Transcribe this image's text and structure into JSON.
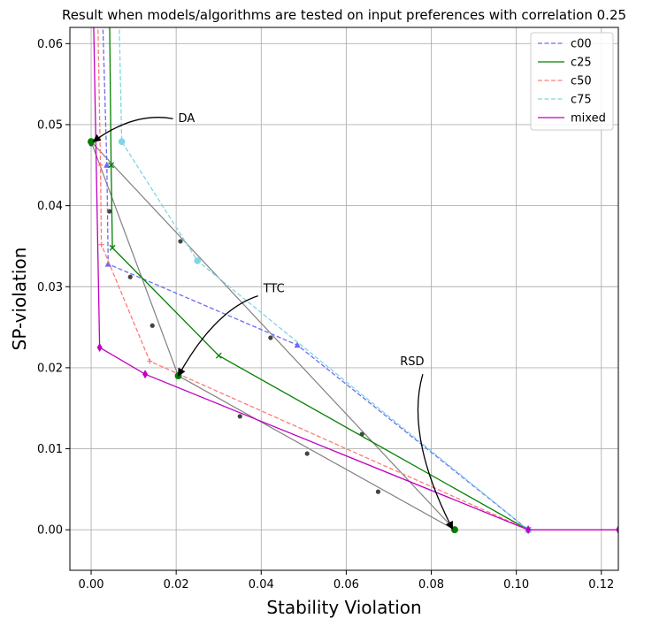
{
  "chart_data": {
    "type": "line",
    "title": "Result when models/algorithms are tested on input preferences with correlation 0.25",
    "xlabel": "Stability Violation",
    "ylabel": "SP-violation",
    "xlim": [
      -0.005,
      0.124
    ],
    "ylim": [
      -0.005,
      0.062
    ],
    "xticks": [
      "0.00",
      "0.02",
      "0.04",
      "0.06",
      "0.08",
      "0.10",
      "0.12"
    ],
    "xtick_values": [
      0,
      0.02,
      0.04,
      0.06,
      0.08,
      0.1,
      0.12
    ],
    "yticks": [
      "0.00",
      "0.01",
      "0.02",
      "0.03",
      "0.04",
      "0.05",
      "0.06"
    ],
    "ytick_values": [
      0,
      0.01,
      0.02,
      0.03,
      0.04,
      0.05,
      0.06
    ],
    "grid": true,
    "legend_position": "top-right",
    "series": [
      {
        "name": "c00",
        "color": "#6b6bf2",
        "dash": "dashed",
        "marker": "triangle",
        "x": [
          0.0026,
          0.0037,
          0.004,
          0.0485,
          0.1028
        ],
        "y": [
          0.065,
          0.045,
          0.0328,
          0.0228,
          0.0
        ]
      },
      {
        "name": "c25",
        "color": "#008000",
        "dash": "solid",
        "marker": "x",
        "x": [
          0.0043,
          0.0047,
          0.005,
          0.03,
          0.1028
        ],
        "y": [
          0.065,
          0.045,
          0.0348,
          0.0215,
          0.0
        ]
      },
      {
        "name": "c50",
        "color": "#ff7a7a",
        "dash": "dashed",
        "marker": "plus",
        "x": [
          0.0015,
          0.0022,
          0.0024,
          0.0138,
          0.1028
        ],
        "y": [
          0.065,
          0.045,
          0.0352,
          0.0208,
          0.0
        ]
      },
      {
        "name": "c75",
        "color": "#7fd6e6",
        "dash": "dashed",
        "marker": "circle",
        "x": [
          0.0065,
          0.0072,
          0.025,
          0.1028
        ],
        "y": [
          0.065,
          0.0479,
          0.0332,
          0.0
        ]
      },
      {
        "name": "mixed",
        "color": "#c000c0",
        "dash": "solid",
        "marker": "diamond",
        "x": [
          0.0005,
          0.002,
          0.0127,
          0.1028,
          0.124
        ],
        "y": [
          0.065,
          0.0225,
          0.0192,
          0.0,
          0.0
        ]
      }
    ],
    "reference_lines": [
      {
        "color": "#808080",
        "x": [
          0.0,
          0.0855
        ],
        "y": [
          0.0479,
          0.0
        ]
      },
      {
        "color": "#808080",
        "x": [
          0.0,
          0.0205
        ],
        "y": [
          0.0479,
          0.019
        ]
      },
      {
        "color": "#808080",
        "x": [
          0.0205,
          0.0855
        ],
        "y": [
          0.019,
          0.0
        ]
      }
    ],
    "reference_points": {
      "color": "#444444",
      "x": [
        0.0,
        0.0043,
        0.0092,
        0.0144,
        0.021,
        0.0422,
        0.0637,
        0.035,
        0.0508,
        0.0675
      ],
      "y": [
        0.0476,
        0.0393,
        0.0312,
        0.0252,
        0.0356,
        0.0237,
        0.0118,
        0.014,
        0.0094,
        0.0047
      ]
    },
    "key_points": [
      {
        "label": "DA",
        "x": 0.0,
        "y": 0.0479,
        "color": "#008000"
      },
      {
        "label": "TTC",
        "x": 0.0205,
        "y": 0.019,
        "color": "#008000"
      },
      {
        "label": "RSD",
        "x": 0.0855,
        "y": 0.0,
        "color": "#008000"
      }
    ],
    "annotations": [
      {
        "text": "DA",
        "text_x": 0.0205,
        "text_y": 0.0503,
        "arrow_to_x": 0.0005,
        "arrow_to_y": 0.0479
      },
      {
        "text": "TTC",
        "text_x": 0.0405,
        "text_y": 0.0293,
        "arrow_to_x": 0.0205,
        "arrow_to_y": 0.019
      },
      {
        "text": "RSD",
        "text_x": 0.0755,
        "text_y": 0.0203,
        "arrow_to_x": 0.085,
        "arrow_to_y": 0.0001
      }
    ]
  }
}
